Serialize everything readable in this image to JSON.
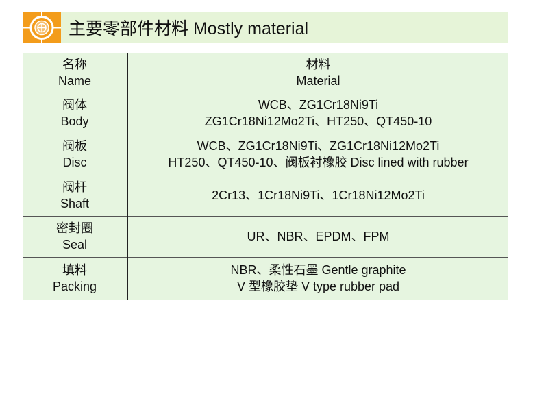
{
  "header": {
    "title": "主要零部件材料  Mostly material",
    "logo_color": "#f39c1b",
    "banner_color": "#e6f4d8"
  },
  "table": {
    "header": {
      "name_cn": "名称",
      "name_en": "Name",
      "mat_cn": "材料",
      "mat_en": "Material"
    },
    "rows": [
      {
        "cn": "阀体",
        "en": "Body",
        "m1": "WCB、ZG1Cr18Ni9Ti",
        "m2": "ZG1Cr18Ni12Mo2Ti、HT250、QT450-10"
      },
      {
        "cn": "阀板",
        "en": "Disc",
        "m1": "WCB、ZG1Cr18Ni9Ti、ZG1Cr18Ni12Mo2Ti",
        "m2": "HT250、QT450-10、阀板衬橡胶 Disc lined with rubber"
      },
      {
        "cn": "阀杆",
        "en": "Shaft",
        "m1": "2Cr13、1Cr18Ni9Ti、1Cr18Ni12Mo2Ti",
        "m2": ""
      },
      {
        "cn": "密封圈",
        "en": "Seal",
        "m1": "UR、NBR、EPDM、FPM",
        "m2": ""
      },
      {
        "cn": "填料",
        "en": "Packing",
        "m1": "NBR、柔性石墨 Gentle graphite",
        "m2": "V 型橡胶垫 V type rubber pad"
      }
    ]
  }
}
